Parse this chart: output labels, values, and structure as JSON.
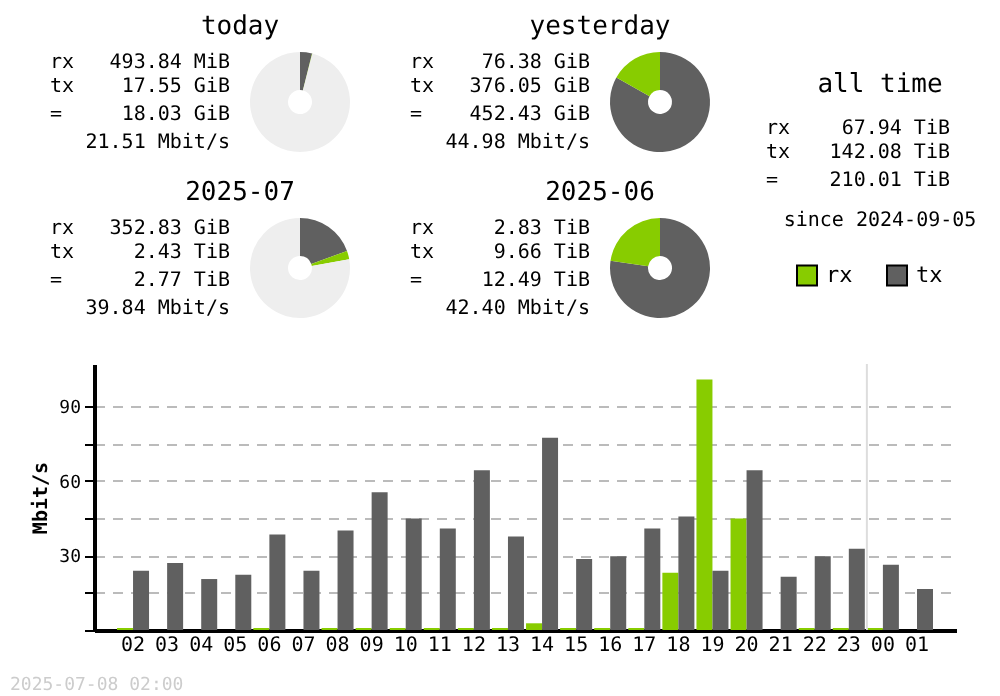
{
  "chart_data": [
    {
      "type": "donut",
      "title": "today",
      "categories": [
        null,
        null,
        null
      ],
      "values": [
        3.88,
        0.11,
        96.01
      ],
      "colors": [
        "#606060",
        "#88cc00",
        "#eeeeee"
      ],
      "annotations": [
        "rx 493.84 MiB",
        "tx 17.55 GiB",
        "= 18.03 GiB",
        "21.51 Mbit/s"
      ]
    },
    {
      "type": "donut",
      "title": "yesterday",
      "categories": [
        null,
        null
      ],
      "values": [
        83.12,
        16.88
      ],
      "colors": [
        "#606060",
        "#88cc00"
      ],
      "annotations": [
        "rx 76.38 GiB",
        "tx 376.05 GiB",
        "= 452.43 GiB",
        "44.98 Mbit/s"
      ]
    },
    {
      "type": "other",
      "title": "all time",
      "annotations": [
        "rx 67.94 TiB",
        "tx 142.08 TiB",
        "= 210.01 TiB",
        "since 2024-09-05"
      ]
    },
    {
      "type": "donut",
      "title": "2025-07",
      "categories": [
        null,
        null,
        null
      ],
      "values": [
        19.46,
        2.76,
        77.78
      ],
      "colors": [
        "#606060",
        "#88cc00",
        "#eeeeee"
      ],
      "annotations": [
        "rx 352.83 GiB",
        "tx 2.43 TiB",
        "= 2.77 TiB",
        "39.84 Mbit/s"
      ]
    },
    {
      "type": "donut",
      "title": "2025-06",
      "categories": [
        null,
        null
      ],
      "values": [
        77.34,
        22.66
      ],
      "colors": [
        "#606060",
        "#88cc00"
      ],
      "annotations": [
        "rx 2.83 TiB",
        "tx 9.66 TiB",
        "= 12.49 TiB",
        "42.40 Mbit/s"
      ]
    },
    {
      "type": "bar",
      "categories": [
        "02",
        "03",
        "04",
        "05",
        "06",
        "07",
        "08",
        "09",
        "10",
        "11",
        "12",
        "13",
        "14",
        "15",
        "16",
        "17",
        "18",
        "19",
        "20",
        "21",
        "22",
        "23",
        "00",
        "01"
      ],
      "series": [
        {
          "name": "rx",
          "color": "#88cc00",
          "values": [
            0.8,
            0,
            0,
            0,
            0.8,
            0,
            0.8,
            0.8,
            0.8,
            0.8,
            0.8,
            0.8,
            2.7,
            0.8,
            0.8,
            0.8,
            23,
            100.8,
            44.9,
            0,
            0.8,
            0.8,
            0.8,
            0
          ]
        },
        {
          "name": "tx",
          "color": "#606060",
          "values": [
            23.8,
            27,
            20.5,
            22.2,
            38.4,
            23.8,
            40,
            55.4,
            44.9,
            40.8,
            64.3,
            37.6,
            77.3,
            28.6,
            29.7,
            40.8,
            45.7,
            23.8,
            64.3,
            21.4,
            29.7,
            32.7,
            26.2,
            16.5
          ]
        }
      ],
      "ylabel": "Mbit/s",
      "ylim": [
        0,
        107
      ],
      "yticks": [
        {
          "value": 0,
          "label": null
        },
        {
          "value": 15,
          "label": null
        },
        30,
        {
          "value": 45,
          "label": null
        },
        60,
        {
          "value": 75,
          "label": null
        },
        90
      ],
      "grid": "y",
      "legend": "top right",
      "ref_lines": [
        {
          "axis": "x",
          "value": "00",
          "color": "#dddddd"
        }
      ],
      "annotations": [
        "2025-07-08 02:00"
      ]
    }
  ]
}
